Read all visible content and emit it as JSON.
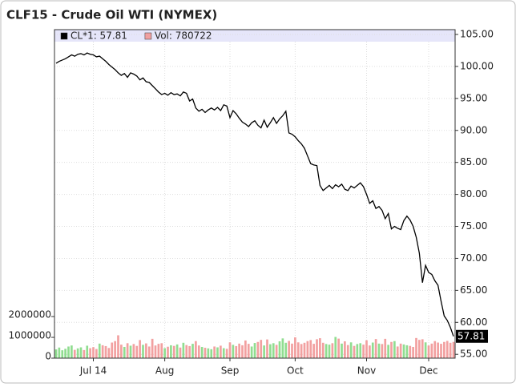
{
  "chart_data": {
    "type": "line",
    "title": "CLF15 - Crude Oil WTI (NYMEX)",
    "categories": [
      null,
      null,
      null,
      null,
      null,
      null,
      null,
      null,
      null,
      null,
      null,
      null,
      "Jul 14",
      null,
      null,
      null,
      null,
      null,
      null,
      null,
      null,
      null,
      null,
      null,
      null,
      null,
      null,
      null,
      null,
      null,
      null,
      null,
      null,
      null,
      null,
      "Aug",
      null,
      null,
      null,
      null,
      null,
      null,
      null,
      null,
      null,
      null,
      null,
      null,
      null,
      null,
      null,
      null,
      null,
      null,
      null,
      null,
      "Sep",
      null,
      null,
      null,
      null,
      null,
      null,
      null,
      null,
      null,
      null,
      null,
      null,
      null,
      null,
      null,
      null,
      null,
      null,
      null,
      null,
      "Oct",
      null,
      null,
      null,
      null,
      null,
      null,
      null,
      null,
      null,
      null,
      null,
      null,
      null,
      null,
      null,
      null,
      null,
      null,
      null,
      null,
      null,
      null,
      "Nov",
      null,
      null,
      null,
      null,
      null,
      null,
      null,
      null,
      null,
      null,
      null,
      null,
      null,
      null,
      null,
      null,
      null,
      null,
      null,
      "Dec",
      null,
      null,
      null,
      null,
      null,
      null,
      null,
      null
    ],
    "series": [
      {
        "name": "CL*1: 57.81",
        "color": "#000000",
        "values": [
          100.5,
          100.8,
          101,
          101.2,
          101.5,
          101.8,
          101.6,
          101.9,
          102,
          101.8,
          102.1,
          101.9,
          101.8,
          101.5,
          101.6,
          101.2,
          100.8,
          100.3,
          99.9,
          99.5,
          99.0,
          98.6,
          98.9,
          98.3,
          99.0,
          98.8,
          98.5,
          97.9,
          98.2,
          97.6,
          97.5,
          97.0,
          96.5,
          96.0,
          95.6,
          95.8,
          95.5,
          95.9,
          95.6,
          95.7,
          95.4,
          96.0,
          95.8,
          94.6,
          94.9,
          93.5,
          93.0,
          93.3,
          92.8,
          93.2,
          93.5,
          93.2,
          93.6,
          93.1,
          94.0,
          93.8,
          92.0,
          93.1,
          92.6,
          91.9,
          91.3,
          91.0,
          90.6,
          91.2,
          91.5,
          90.8,
          90.4,
          91.6,
          90.5,
          91.2,
          92.0,
          91.1,
          91.8,
          92.3,
          93.0,
          89.6,
          89.4,
          89.0,
          88.4,
          87.9,
          87.2,
          86.0,
          84.8,
          84.6,
          84.5,
          81.4,
          80.6,
          81.0,
          81.4,
          80.9,
          81.5,
          81.2,
          81.6,
          80.8,
          80.6,
          81.3,
          81.0,
          81.4,
          81.8,
          81.2,
          80.0,
          78.6,
          79.0,
          77.8,
          78.1,
          77.5,
          76.2,
          77.0,
          74.6,
          75.0,
          74.7,
          74.5,
          75.9,
          76.6,
          76.0,
          75.0,
          73.3,
          70.8,
          66.2,
          68.9,
          67.8,
          67.5,
          66.5,
          65.8,
          63.3,
          61.0,
          60.3,
          59.2,
          57.81
        ]
      },
      {
        "name": "Vol: 780722",
        "color": "#f0a0a0",
        "axis": "y2",
        "values": [
          420000,
          510000,
          380000,
          450000,
          560000,
          610000,
          400000,
          470000,
          520000,
          390000,
          600000,
          480000,
          530000,
          440000,
          700000,
          620000,
          580000,
          490000,
          750000,
          820000,
          1100000,
          650000,
          540000,
          720000,
          600000,
          680000,
          590000,
          870000,
          640000,
          710000,
          560000,
          930000,
          610000,
          690000,
          720000,
          480000,
          550000,
          620000,
          590000,
          660000,
          510000,
          740000,
          630000,
          580000,
          690000,
          820000,
          610000,
          540000,
          500000,
          470000,
          430000,
          560000,
          520000,
          600000,
          480000,
          450000,
          760000,
          640000,
          580000,
          700000,
          620000,
          850000,
          690000,
          560000,
          730000,
          780000,
          880000,
          610000,
          900000,
          670000,
          720000,
          640000,
          810000,
          950000,
          740000,
          830000,
          700000,
          1000000,
          760000,
          680000,
          740000,
          820000,
          870000,
          690000,
          910000,
          960000,
          740000,
          680000,
          650000,
          720000,
          1020000,
          940000,
          700000,
          810000,
          630000,
          760000,
          590000,
          680000,
          720000,
          650000,
          860000,
          610000,
          750000,
          920000,
          700000,
          680000,
          930000,
          640000,
          780000,
          820000,
          560000,
          700000,
          660000,
          620000,
          590000,
          540000,
          970000,
          880000,
          910000,
          760000,
          610000,
          700000,
          820000,
          750000,
          690000,
          780000,
          830000,
          740000,
          780722
        ]
      }
    ],
    "up_color": "#90dd90",
    "down_color": "#f2a0a0",
    "ylim": [
      54.4,
      105.75
    ],
    "yticks": [
      {
        "value": 55,
        "label": "55.00"
      },
      {
        "value": 60,
        "label": "60.00"
      },
      {
        "value": 65,
        "label": "65.00"
      },
      {
        "value": 70,
        "label": "70.00"
      },
      {
        "value": 75,
        "label": "75.00"
      },
      {
        "value": 80,
        "label": "80.00"
      },
      {
        "value": 85,
        "label": "85.00"
      },
      {
        "value": 90,
        "label": "90.00"
      },
      {
        "value": 95,
        "label": "95.00"
      },
      {
        "value": 100,
        "label": "100.00"
      },
      {
        "value": 105,
        "label": "105.00"
      }
    ],
    "y2lim": [
      0,
      15800000
    ],
    "y2ticks": [
      0,
      1000000,
      2000000
    ],
    "legend_color": "#e6e6fa",
    "grid": true
  }
}
